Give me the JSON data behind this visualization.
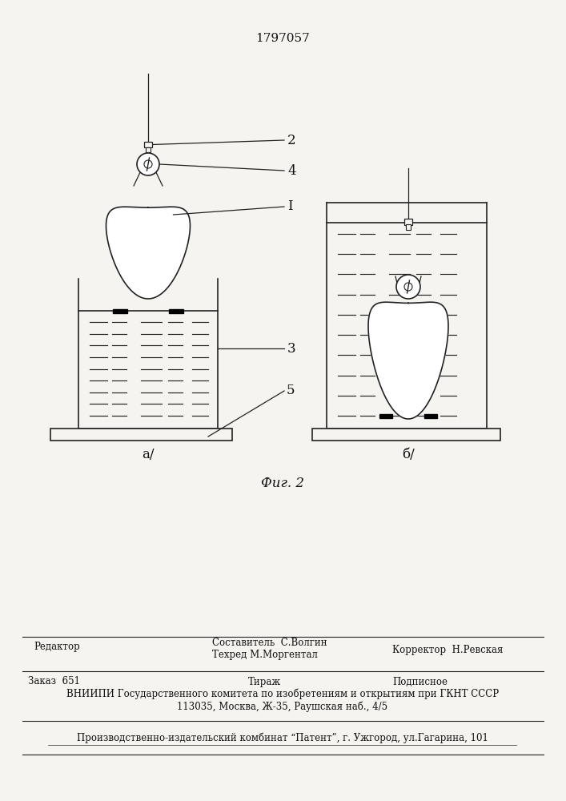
{
  "title": "1797057",
  "fig_label": "Фиг. 2",
  "sub_a": "а/",
  "sub_b": "б/",
  "label_2": "2",
  "label_4": "4",
  "label_1": "I",
  "label_3": "3",
  "label_5": "5",
  "bg_color": "#f5f4f0",
  "line_color": "#222222",
  "text_color": "#111111",
  "footer_editor": "Редактор",
  "footer_sostavitel": "Составитель  С.Волгин",
  "footer_tekhred": "Техред М.Моргентал",
  "footer_korrektor": "Корректор  Н.Ревская",
  "footer_zakaz": "Заказ  651",
  "footer_tirazh": "Тираж",
  "footer_podpisnoe": "Подписное",
  "footer_vniipи": "ВНИИПИ Государственного комитета по изобретениям и открытиям при ГКНТ СССР",
  "footer_addr": "113035, Москва, Ж-35, Раушская наб., 4/5",
  "footer_patent": "Производственно-издательский комбинат “Патент”, г. Ужгород, ул.Гагарина, 101"
}
